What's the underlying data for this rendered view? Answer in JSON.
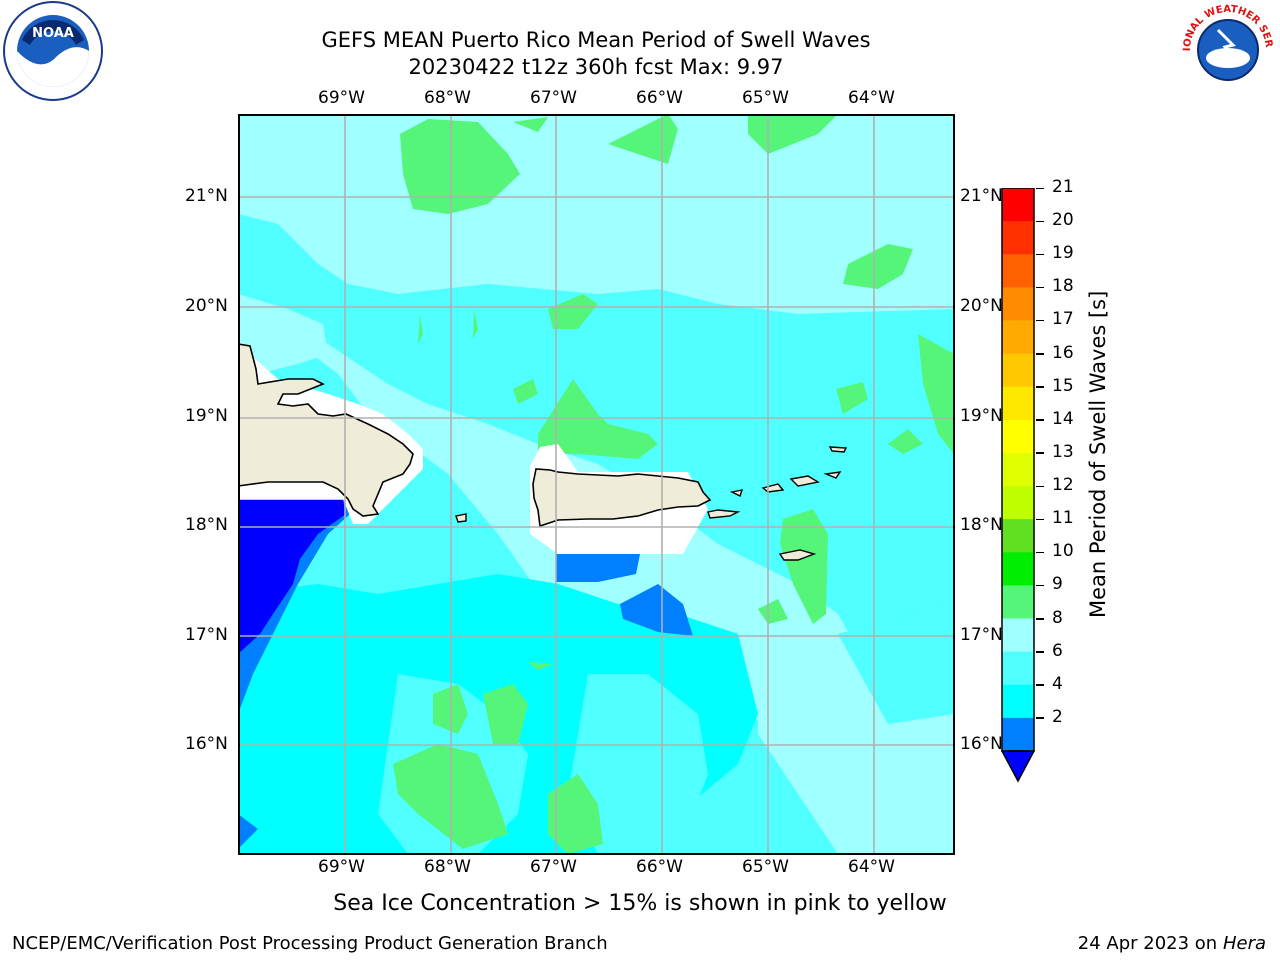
{
  "header": {
    "title_line1": "GEFS MEAN Puerto Rico Mean Period of Swell Waves",
    "title_line2": "20230422 t12z 360h fcst   Max: 9.97"
  },
  "logos": {
    "left": "NOAA",
    "right": "NATIONAL WEATHER SERVICE"
  },
  "map": {
    "lon_ticks": [
      "69°W",
      "68°W",
      "67°W",
      "66°W",
      "65°W",
      "64°W"
    ],
    "lat_ticks": [
      "21°N",
      "20°N",
      "19°N",
      "18°N",
      "17°N",
      "16°N"
    ],
    "colors": {
      "ocean_light": "#a0ffff",
      "ocean_mid": "#50ffff",
      "ocean_cyan": "#00ffff",
      "green": "#55f57a",
      "blue_mid": "#0080ff",
      "blue_deep": "#0000ff",
      "land": "#efedda",
      "grid": "#b0b0b0"
    }
  },
  "colorbar": {
    "label": "Mean Period of Swell Waves [s]",
    "ticks": [
      "21",
      "20",
      "19",
      "18",
      "17",
      "16",
      "15",
      "14",
      "13",
      "12",
      "11",
      "10",
      "9",
      "8",
      "6",
      "4",
      "2"
    ],
    "colors_top_to_bottom": [
      "#ff0000",
      "#ff3000",
      "#ff6000",
      "#ff8c00",
      "#ffaa00",
      "#ffc800",
      "#ffe800",
      "#ffff00",
      "#e0ff00",
      "#c0ff00",
      "#60e020",
      "#00ee00",
      "#55f57a",
      "#a0ffff",
      "#50ffff",
      "#00ffff",
      "#0080ff"
    ],
    "extend_color": "#0000ff"
  },
  "note": "Sea Ice Concentration > 15% is shown in pink to yellow",
  "footer": {
    "left": "NCEP/EMC/Verification Post Processing Product Generation Branch",
    "date": "24 Apr 2023 on ",
    "machine": "Hera"
  }
}
